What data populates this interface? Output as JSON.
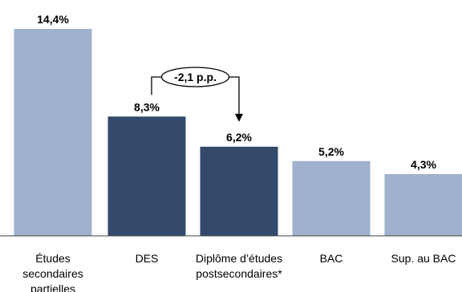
{
  "chart_data": {
    "type": "bar",
    "title": "",
    "xlabel": "",
    "ylabel": "",
    "ylim": [
      0,
      16
    ],
    "grid": false,
    "legend": "none",
    "categories": [
      [
        "Études",
        "secondaires",
        "partielles"
      ],
      [
        "DES"
      ],
      [
        "Diplôme d’études",
        "postsecondaires*"
      ],
      [
        "BAC"
      ],
      [
        "Sup. au BAC"
      ]
    ],
    "values": [
      14.4,
      8.3,
      6.2,
      5.2,
      4.3
    ],
    "data_labels": [
      "14,4%",
      "8,3%",
      "6,2%",
      "5,2%",
      "4,3%"
    ],
    "highlighted": [
      false,
      true,
      true,
      false,
      false
    ],
    "annotation": {
      "text": "-2,1 p.p.",
      "from_index": 1,
      "to_index": 2
    },
    "colors": {
      "light": "#9fb1cf",
      "dark": "#344a6a",
      "axis": "#404040"
    }
  }
}
